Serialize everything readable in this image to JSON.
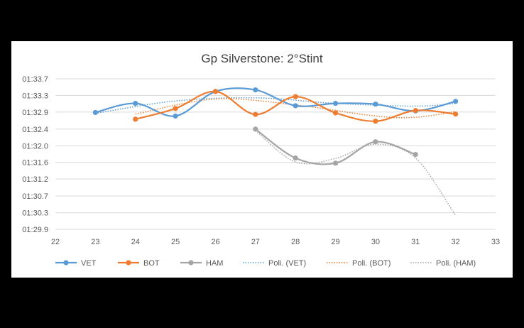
{
  "chart_data": {
    "type": "line",
    "title": "Gp Silverstone: 2°Stint",
    "xlabel": "",
    "ylabel": "",
    "xlim": [
      22,
      33
    ],
    "ylim": [
      89.9,
      93.7
    ],
    "x_ticks": [
      "22",
      "23",
      "24",
      "25",
      "26",
      "27",
      "28",
      "29",
      "30",
      "31",
      "32",
      "33"
    ],
    "y_ticks": [
      "01:29.9",
      "01:30.3",
      "01:30.7",
      "01:31.2",
      "01:31.6",
      "01:32.0",
      "01:32.4",
      "01:32.9",
      "01:33.3",
      "01:33.7"
    ],
    "y_tick_values": [
      89.9,
      90.32,
      90.74,
      91.17,
      91.59,
      92.01,
      92.43,
      92.86,
      93.28,
      93.7
    ],
    "grid": "horizontal",
    "legend_position": "bottom",
    "series": [
      {
        "name": "VET",
        "color": "#5B9BD5",
        "x": [
          23,
          24,
          25,
          26,
          27,
          28,
          29,
          30,
          31,
          32
        ],
        "y": [
          92.85,
          93.08,
          92.76,
          93.38,
          93.42,
          93.02,
          93.08,
          93.06,
          92.89,
          93.13
        ]
      },
      {
        "name": "BOT",
        "color": "#ED7D31",
        "x": [
          24,
          25,
          26,
          27,
          28,
          29,
          30,
          31,
          32
        ],
        "y": [
          92.68,
          92.95,
          93.38,
          92.8,
          93.25,
          92.84,
          92.63,
          92.9,
          92.81
        ]
      },
      {
        "name": "HAM",
        "color": "#A5A5A5",
        "x": [
          27,
          28,
          29,
          30,
          31
        ],
        "y": [
          92.43,
          91.7,
          91.57,
          92.11,
          91.79
        ]
      }
    ],
    "trendlines": [
      {
        "name": "Poli. (VET)",
        "color": "#5B9BD5",
        "x": [
          23,
          25,
          27,
          29,
          31,
          32
        ],
        "y": [
          92.83,
          93.14,
          93.22,
          93.08,
          93.01,
          93.08
        ]
      },
      {
        "name": "Poli. (BOT)",
        "color": "#ED7D31",
        "x": [
          24,
          26,
          28,
          30,
          31,
          32
        ],
        "y": [
          92.81,
          93.19,
          93.04,
          92.76,
          92.73,
          92.87
        ]
      },
      {
        "name": "Poli. (HAM)",
        "color": "#A5A5A5",
        "x": [
          27,
          28,
          29,
          30,
          31,
          32
        ],
        "y": [
          92.39,
          91.6,
          91.69,
          92.05,
          91.7,
          90.25
        ]
      }
    ],
    "legend": [
      "VET",
      "BOT",
      "HAM",
      "Poli. (VET)",
      "Poli. (BOT)",
      "Poli. (HAM)"
    ]
  }
}
